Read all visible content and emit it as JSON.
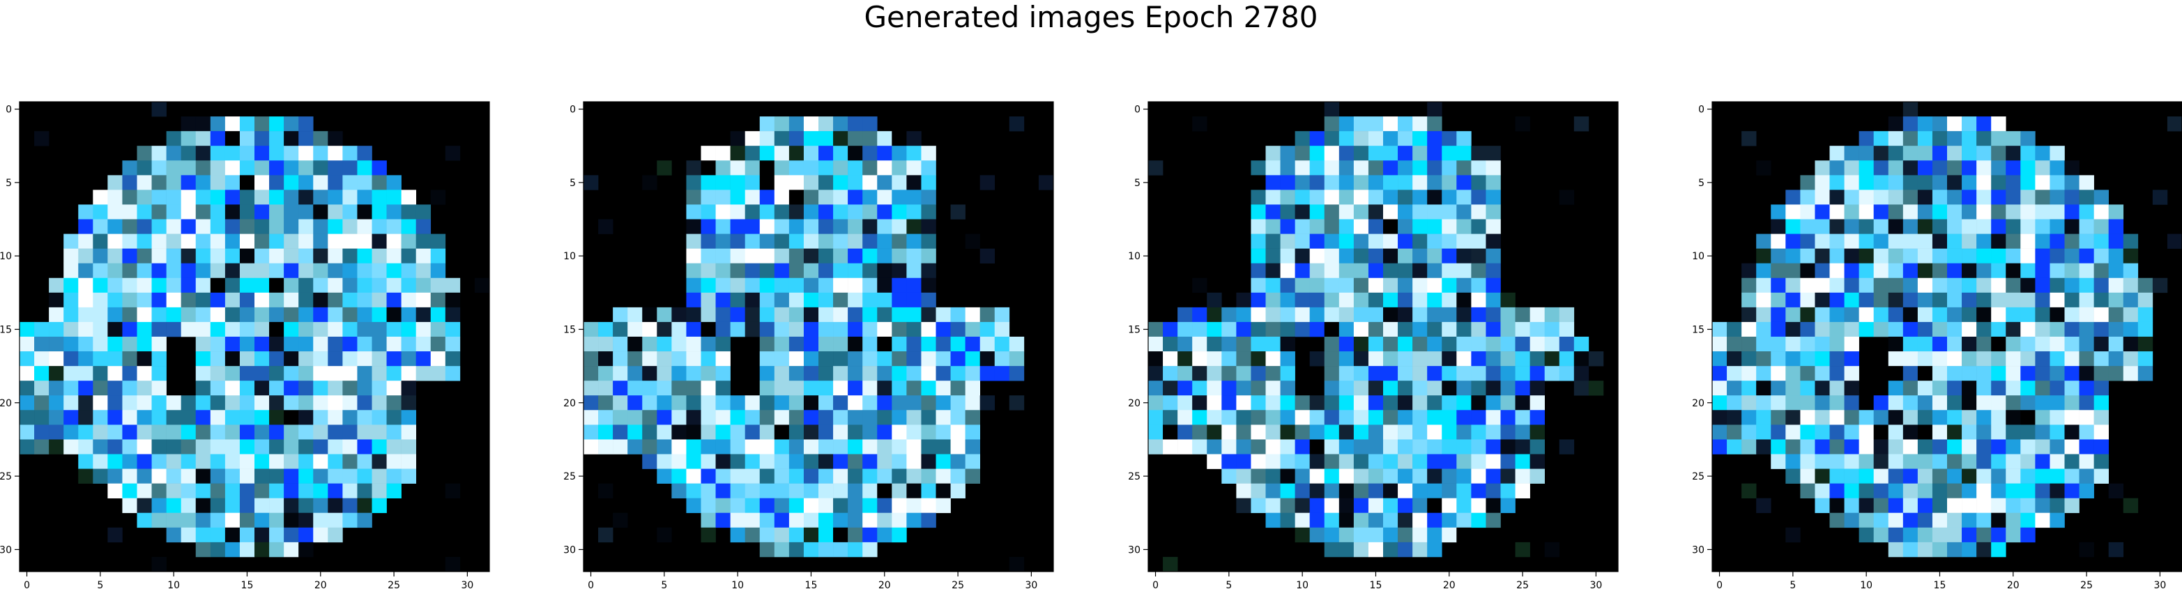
{
  "figure": {
    "title": "Generated images Epoch 2780"
  },
  "panels": [
    {
      "id": "sample-1"
    },
    {
      "id": "sample-2"
    },
    {
      "id": "sample-3"
    },
    {
      "id": "sample-4"
    }
  ],
  "axes": {
    "x_ticks": [
      "0",
      "5",
      "10",
      "15",
      "20",
      "25",
      "30"
    ],
    "y_ticks": [
      "0",
      "5",
      "10",
      "15",
      "20",
      "25",
      "30"
    ],
    "pixel_grid": "32x32"
  },
  "colors": {
    "background": "#000000",
    "dominant": [
      "#00e5ff",
      "#5fd3ff",
      "#bfefff",
      "#0b3dff",
      "#1e6f8a",
      "#a8d400"
    ]
  }
}
